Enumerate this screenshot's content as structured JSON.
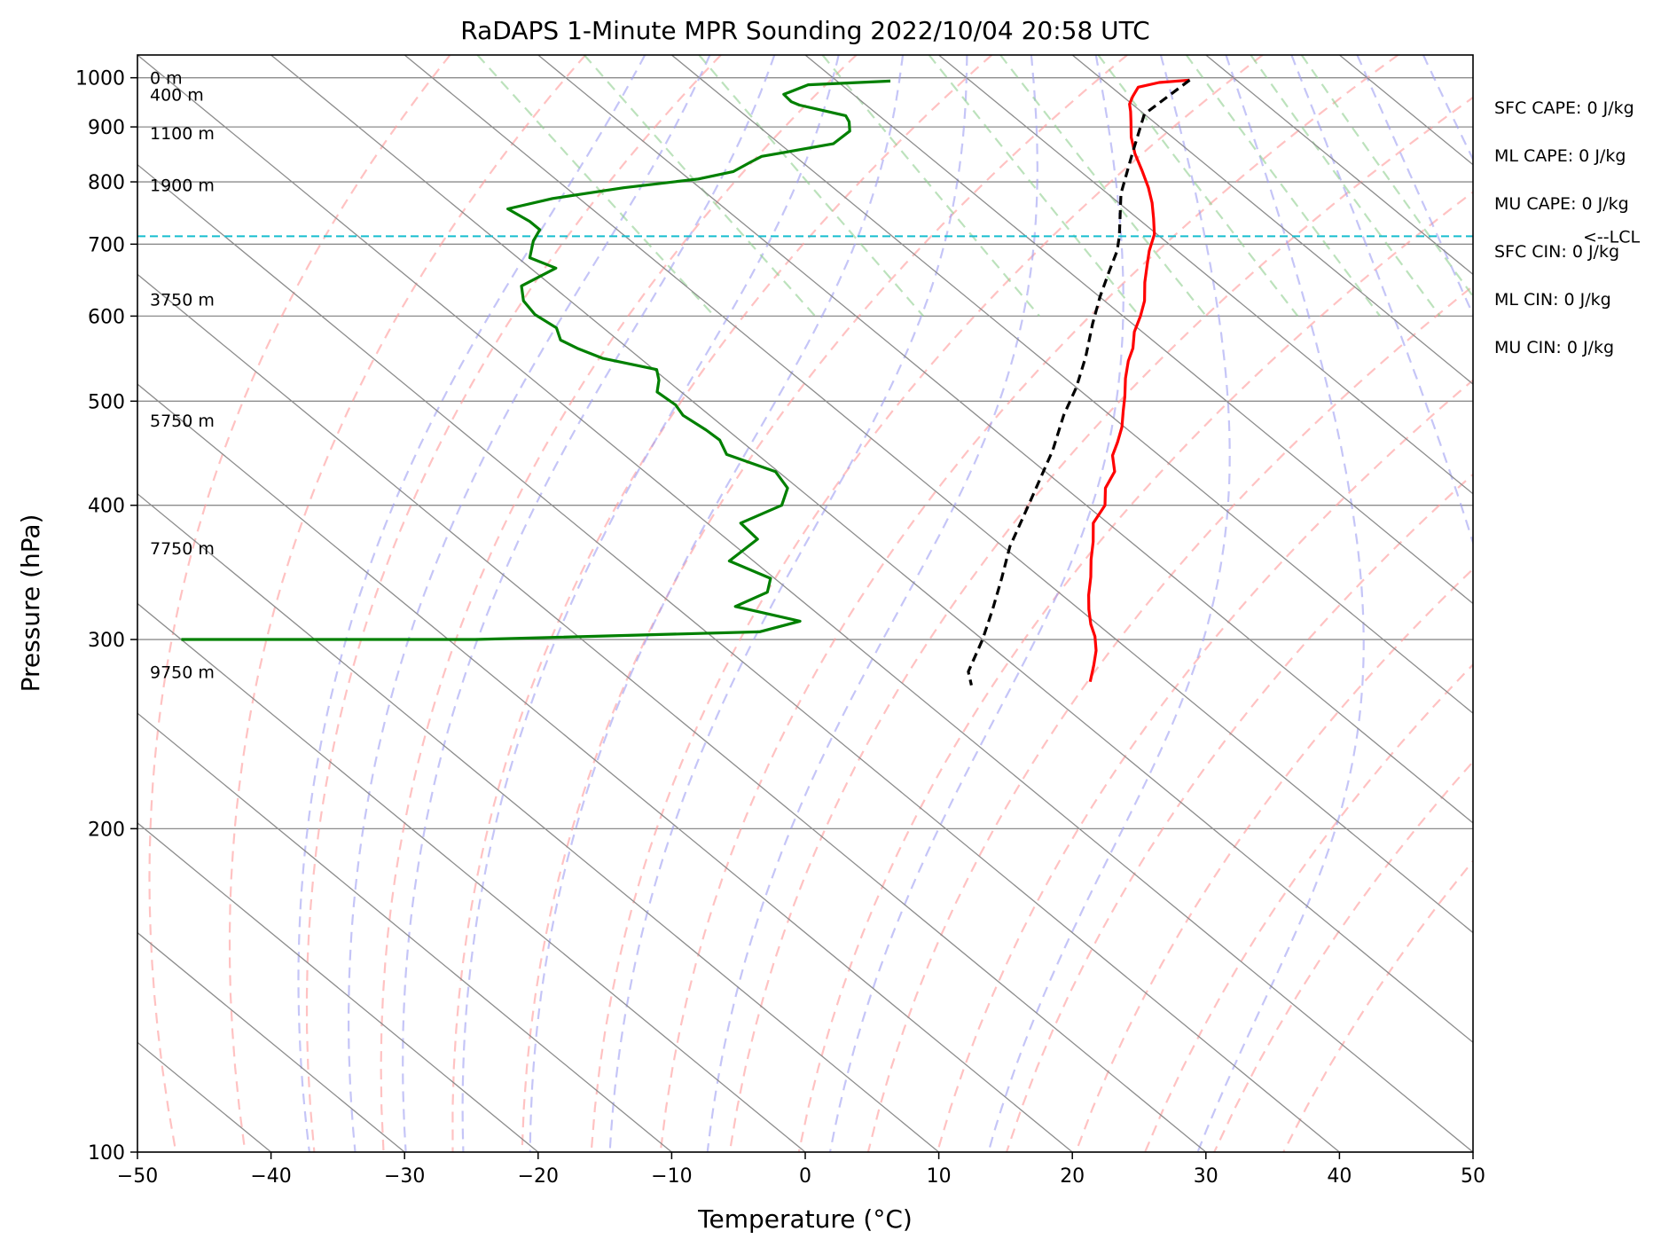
{
  "chart_data": {
    "type": "line",
    "title": "RaDAPS 1-Minute MPR Sounding 2022/10/04 20:58 UTC",
    "xlabel": "Temperature (°C)",
    "ylabel": "Pressure (hPa)",
    "xlim": [
      -50,
      50
    ],
    "ylim": [
      1050,
      100
    ],
    "y_scale": "log",
    "skew": "skew-T log-p",
    "xticks": [
      -50,
      -40,
      -30,
      -20,
      -10,
      0,
      10,
      20,
      30,
      40,
      50
    ],
    "xtick_labels": [
      "−50",
      "−40",
      "−30",
      "−20",
      "−10",
      "0",
      "10",
      "20",
      "30",
      "40",
      "50"
    ],
    "yticks": [
      100,
      200,
      300,
      400,
      500,
      600,
      700,
      800,
      900,
      1000
    ],
    "ytick_labels": [
      "100",
      "200",
      "300",
      "400",
      "500",
      "600",
      "700",
      "800",
      "900",
      "1000"
    ],
    "grid": true,
    "height_labels": [
      {
        "text": "9750 m",
        "p": 280
      },
      {
        "text": "7750 m",
        "p": 365
      },
      {
        "text": "5750 m",
        "p": 480
      },
      {
        "text": "3750 m",
        "p": 622
      },
      {
        "text": "1900 m",
        "p": 795
      },
      {
        "text": "1100 m",
        "p": 888
      },
      {
        "text": "400 m",
        "p": 965
      },
      {
        "text": "0 m",
        "p": 1000
      }
    ],
    "indices": [
      "SFC CAPE: 0 J/kg",
      "ML CAPE: 0 J/kg",
      "MU CAPE: 0 J/kg",
      "SFC CIN: 0 J/kg",
      "ML CIN: 0 J/kg",
      "MU CIN: 0 J/kg"
    ],
    "lcl": {
      "p": 712,
      "label": "<--LCL"
    },
    "colors": {
      "temperature": "#ff0000",
      "dewpoint": "#008000",
      "parcel": "#000000",
      "lcl": "#17becf",
      "dry_adiabat": "#ff9a9a",
      "moist_adiabat": "#9e9ef2",
      "mixing_ratio": "#8fcf8f",
      "isotherm": "#8c8c8c",
      "isobar": "#8c8c8c"
    },
    "series": [
      {
        "key": "temperature",
        "points": [
          [
            26.5,
            995
          ],
          [
            24.0,
            990
          ],
          [
            22.0,
            980
          ],
          [
            20.7,
            960
          ],
          [
            19.8,
            945
          ],
          [
            19.2,
            930
          ],
          [
            18.3,
            910
          ],
          [
            16.9,
            880
          ],
          [
            15.7,
            850
          ],
          [
            14.7,
            820
          ],
          [
            13.6,
            790
          ],
          [
            12.5,
            765
          ],
          [
            11.2,
            740
          ],
          [
            9.8,
            715
          ],
          [
            7.9,
            690
          ],
          [
            6.5,
            670
          ],
          [
            4.7,
            645
          ],
          [
            3.0,
            620
          ],
          [
            1.3,
            600
          ],
          [
            -0.6,
            580
          ],
          [
            -2.2,
            560
          ],
          [
            -3.7,
            545
          ],
          [
            -5.5,
            525
          ],
          [
            -7.2,
            505
          ],
          [
            -8.6,
            490
          ],
          [
            -10.2,
            473
          ],
          [
            -11.9,
            458
          ],
          [
            -13.5,
            445
          ],
          [
            -14.8,
            430
          ],
          [
            -17.0,
            415
          ],
          [
            -18.6,
            400
          ],
          [
            -21.1,
            385
          ],
          [
            -22.8,
            370
          ],
          [
            -24.6,
            356
          ],
          [
            -26.2,
            343
          ],
          [
            -28.0,
            330
          ],
          [
            -29.3,
            320
          ],
          [
            -30.5,
            310
          ],
          [
            -31.3,
            302
          ],
          [
            -32.5,
            293
          ],
          [
            -34.0,
            284
          ],
          [
            -35.8,
            274
          ]
        ]
      },
      {
        "key": "dewpoint",
        "points": [
          [
            4.0,
            993
          ],
          [
            -2.5,
            985
          ],
          [
            -5.2,
            965
          ],
          [
            -5.3,
            950
          ],
          [
            -5.0,
            943
          ],
          [
            -2.5,
            922
          ],
          [
            -2.8,
            910
          ],
          [
            -3.6,
            892
          ],
          [
            -6.0,
            868
          ],
          [
            -12.5,
            845
          ],
          [
            -13.8,
            835
          ],
          [
            -16.0,
            818
          ],
          [
            -19.3,
            805
          ],
          [
            -25.7,
            790
          ],
          [
            -32.0,
            772
          ],
          [
            -36.3,
            755
          ],
          [
            -35.8,
            735
          ],
          [
            -35.8,
            722
          ],
          [
            -37.3,
            705
          ],
          [
            -39.1,
            680
          ],
          [
            -38.1,
            665
          ],
          [
            -42.3,
            640
          ],
          [
            -43.5,
            620
          ],
          [
            -43.9,
            602
          ],
          [
            -43.5,
            585
          ],
          [
            -44.3,
            570
          ],
          [
            -43.8,
            560
          ],
          [
            -42.8,
            548
          ],
          [
            -39.8,
            535
          ],
          [
            -40.6,
            523
          ],
          [
            -41.8,
            510
          ],
          [
            -41.6,
            496
          ],
          [
            -42.0,
            485
          ],
          [
            -41.6,
            470
          ],
          [
            -41.5,
            460
          ],
          [
            -42.3,
            446
          ],
          [
            -40.2,
            430
          ],
          [
            -40.8,
            415
          ],
          [
            -42.8,
            400
          ],
          [
            -47.5,
            385
          ],
          [
            -47.7,
            372
          ],
          [
            -51.8,
            355
          ],
          [
            -50.3,
            342
          ],
          [
            -51.8,
            332
          ],
          [
            -55.5,
            322
          ],
          [
            -52.0,
            312
          ],
          [
            -56.0,
            305
          ],
          [
            -78.0,
            300
          ],
          [
            -100.0,
            300
          ]
        ]
      },
      {
        "key": "parcel",
        "points": [
          [
            26.5,
            995
          ],
          [
            20.0,
            925
          ],
          [
            15.5,
            850
          ],
          [
            11.0,
            780
          ],
          [
            7.0,
            712
          ],
          [
            5.5,
            690
          ],
          [
            3.0,
            660
          ],
          [
            0.0,
            625
          ],
          [
            -3.0,
            590
          ],
          [
            -6.5,
            550
          ],
          [
            -10.0,
            515
          ],
          [
            -13.5,
            485
          ],
          [
            -17.5,
            450
          ],
          [
            -21.5,
            420
          ],
          [
            -25.5,
            392
          ],
          [
            -29.5,
            366
          ],
          [
            -33.0,
            342
          ],
          [
            -36.5,
            320
          ],
          [
            -40.0,
            300
          ],
          [
            -44.0,
            280
          ],
          [
            -45.0,
            272
          ]
        ]
      }
    ]
  }
}
